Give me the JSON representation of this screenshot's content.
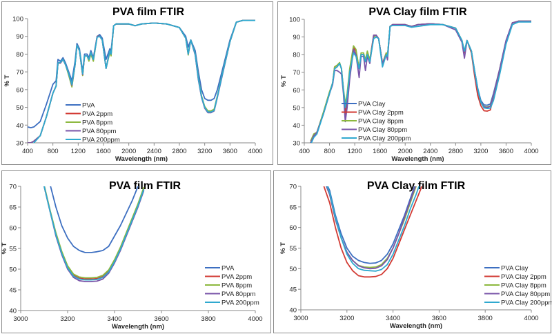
{
  "colors": {
    "blue": "#3d6fc1",
    "red": "#d23a33",
    "green": "#8cb83e",
    "purple": "#7a55a9",
    "cyan": "#2fa9cf"
  },
  "chart_data": [
    {
      "type": "line",
      "title": "PVA film FTIR",
      "xlabel": "Wavelength (nm)",
      "ylabel": "% T",
      "xlim": [
        400,
        4000
      ],
      "ylim": [
        30,
        100
      ],
      "xticks": [
        400,
        800,
        1200,
        1600,
        2000,
        2400,
        2800,
        3200,
        3600,
        4000
      ],
      "yticks": [
        30,
        40,
        50,
        60,
        70,
        80,
        90,
        100
      ],
      "grid": false,
      "legend": "bottom-left",
      "x": [
        400,
        450,
        500,
        600,
        700,
        800,
        850,
        880,
        920,
        960,
        1000,
        1050,
        1100,
        1150,
        1180,
        1220,
        1270,
        1300,
        1340,
        1370,
        1400,
        1440,
        1500,
        1540,
        1580,
        1640,
        1700,
        1720,
        1760,
        1800,
        2000,
        2100,
        2200,
        2400,
        2600,
        2800,
        2900,
        2940,
        2980,
        3050,
        3100,
        3150,
        3200,
        3250,
        3300,
        3350,
        3400,
        3500,
        3600,
        3700,
        3800,
        4000
      ],
      "series": [
        {
          "name": "PVA",
          "color": "blue",
          "values": [
            39,
            38.5,
            39,
            42,
            52,
            63,
            65,
            77,
            76,
            78,
            75,
            70,
            65,
            76,
            86,
            83,
            70,
            80,
            80,
            78,
            82,
            78,
            90,
            91,
            89,
            77,
            83,
            82,
            96,
            97,
            97,
            96,
            97,
            97.5,
            97,
            95,
            90,
            84,
            88,
            82,
            70,
            60,
            55,
            54,
            54,
            55,
            60,
            74,
            88,
            98,
            99,
            99
          ]
        },
        {
          "name": "PVA 2ppm",
          "color": "red",
          "values": [
            30,
            30,
            31,
            34,
            45,
            58,
            62,
            75,
            75,
            77,
            74,
            69,
            62,
            74,
            85,
            82,
            68,
            79,
            79,
            77,
            81,
            77,
            90,
            90,
            88,
            72,
            82,
            80,
            96,
            97,
            97,
            96,
            97,
            97.5,
            97,
            95,
            89,
            80,
            88,
            80,
            66,
            56,
            50,
            47.6,
            47.6,
            48.5,
            56,
            72,
            87,
            98,
            99,
            99
          ]
        },
        {
          "name": "PVA 8ppm",
          "color": "green",
          "values": [
            30,
            30,
            31,
            34,
            45,
            58,
            62,
            75,
            75,
            77,
            74,
            68,
            61.5,
            74,
            85,
            82,
            68,
            79,
            79,
            76,
            80,
            76,
            90,
            90,
            88,
            72,
            81,
            79,
            96,
            97,
            97,
            96,
            97,
            97.5,
            97,
            95,
            89,
            79.5,
            88,
            80,
            66.5,
            56.5,
            50.5,
            48,
            48,
            49,
            56.5,
            72,
            87,
            98,
            99,
            99
          ]
        },
        {
          "name": "PVA 80ppm",
          "color": "purple",
          "values": [
            30,
            30,
            31,
            34,
            45,
            58,
            62,
            75,
            75,
            77,
            74,
            69,
            62.5,
            74,
            85,
            82,
            68.5,
            79,
            79,
            77,
            81,
            77,
            90,
            90,
            88,
            72,
            82,
            80,
            96,
            97,
            97,
            96,
            97,
            97.5,
            97,
            95,
            89,
            80,
            88,
            79.5,
            65.5,
            55.5,
            49.5,
            47,
            47,
            48,
            55.5,
            71.5,
            87,
            98,
            99,
            99
          ]
        },
        {
          "name": "PVA 200ppm",
          "color": "cyan",
          "values": [
            29,
            29,
            30,
            34,
            45,
            58,
            62,
            75,
            75.5,
            77,
            74,
            69,
            63,
            74,
            85,
            82,
            69,
            79,
            79,
            77,
            81,
            77,
            89.5,
            90,
            88,
            72,
            82,
            80,
            96,
            97,
            97,
            96,
            97,
            97.5,
            97,
            95,
            89,
            80,
            88,
            80,
            66,
            56,
            50,
            47.4,
            47.4,
            48.3,
            56,
            72,
            87,
            98,
            99,
            99
          ]
        }
      ]
    },
    {
      "type": "line",
      "title": "PVA Clay film FTIR",
      "xlabel": "Wavelength (nm)",
      "ylabel": "% T",
      "xlim": [
        400,
        4000
      ],
      "ylim": [
        30,
        100
      ],
      "xticks": [
        400,
        800,
        1200,
        1600,
        2000,
        2400,
        2800,
        3200,
        3600,
        4000
      ],
      "yticks": [
        30,
        40,
        50,
        60,
        70,
        80,
        90,
        100
      ],
      "grid": false,
      "legend": "bottom-left",
      "x": [
        500,
        550,
        600,
        700,
        800,
        850,
        880,
        920,
        960,
        990,
        1020,
        1050,
        1080,
        1120,
        1180,
        1220,
        1270,
        1300,
        1340,
        1370,
        1400,
        1440,
        1500,
        1540,
        1580,
        1640,
        1700,
        1720,
        1760,
        1800,
        2000,
        2100,
        2200,
        2400,
        2600,
        2800,
        2900,
        2940,
        2980,
        3050,
        3100,
        3150,
        3200,
        3250,
        3300,
        3350,
        3400,
        3500,
        3600,
        3700,
        3800,
        4000
      ],
      "series": [
        {
          "name": "PVA Clay",
          "color": "blue",
          "values": [
            30,
            34,
            36,
            46,
            58,
            64,
            72,
            73,
            75,
            72,
            60,
            45,
            55,
            70,
            82,
            80,
            72,
            80,
            80,
            76,
            80,
            77,
            90,
            91,
            89,
            75,
            80,
            79,
            96,
            97,
            97,
            96,
            97,
            97.5,
            97,
            95,
            88,
            81,
            88,
            82,
            71,
            61,
            54,
            51.5,
            51.3,
            52,
            58,
            72,
            88,
            98,
            99,
            99
          ]
        },
        {
          "name": "PVA Clay 2ppm",
          "color": "red",
          "values": [
            30,
            34,
            36,
            46,
            58,
            64,
            73,
            74,
            75,
            72,
            60,
            46,
            56,
            70,
            84,
            82,
            72,
            80,
            80,
            76,
            80,
            77,
            91,
            91,
            89,
            75,
            81,
            79,
            96,
            97,
            97,
            96,
            97,
            97.5,
            97,
            95,
            88,
            81,
            88,
            81,
            68,
            57,
            51,
            48.2,
            48,
            48.6,
            56,
            71,
            87,
            98,
            99,
            99
          ]
        },
        {
          "name": "PVA Clay 8ppm",
          "color": "green",
          "values": [
            31,
            35,
            36,
            47,
            59,
            64,
            73,
            74,
            75.5,
            72,
            61,
            52,
            58,
            72,
            85,
            83,
            72,
            81,
            81,
            77,
            82,
            77,
            90,
            91,
            89,
            75,
            81,
            79,
            96,
            97,
            97,
            96,
            97,
            97.5,
            97,
            95,
            88,
            82,
            88,
            82,
            70,
            60,
            53,
            50.6,
            50.3,
            51,
            57,
            72,
            87.5,
            98,
            99,
            99
          ]
        },
        {
          "name": "PVA Clay 80ppm",
          "color": "purple",
          "values": [
            30,
            34,
            36,
            46,
            58,
            63,
            71,
            71,
            70,
            69,
            58,
            42,
            50,
            66,
            83,
            80,
            67,
            79,
            79,
            71,
            79,
            75,
            91,
            91,
            89,
            75,
            80,
            77,
            96,
            97,
            97,
            96,
            97,
            97.5,
            97,
            94,
            87,
            78,
            88,
            82,
            70,
            60,
            53,
            50.4,
            50,
            50.7,
            57,
            72,
            88,
            98,
            99,
            99
          ]
        },
        {
          "name": "PVA Clay 200ppm",
          "color": "cyan",
          "values": [
            29,
            33,
            35,
            46,
            58,
            64,
            72,
            73,
            75,
            72,
            60,
            50,
            56,
            70,
            81,
            79,
            72,
            80,
            80,
            76,
            80,
            76,
            89,
            90,
            89,
            73,
            80,
            79,
            96,
            96.5,
            96.5,
            95.5,
            96,
            97,
            97,
            95,
            88,
            82,
            88,
            82,
            71,
            61,
            53,
            49.8,
            49.5,
            49.6,
            54,
            69,
            86,
            97,
            98.5,
            98.5
          ]
        }
      ]
    },
    {
      "type": "line",
      "title": "PVA film FTIR",
      "xlabel": "Wavelength (nm)",
      "ylabel": "% T",
      "xlim": [
        3000,
        4000
      ],
      "ylim": [
        40,
        70
      ],
      "xticks": [
        3000,
        3200,
        3400,
        3600,
        3800,
        4000
      ],
      "yticks": [
        40,
        45,
        50,
        55,
        60,
        65,
        70
      ],
      "grid": false,
      "legend": "bottom-right",
      "x": [
        3100,
        3125,
        3150,
        3175,
        3200,
        3225,
        3250,
        3275,
        3300,
        3325,
        3350,
        3375,
        3400,
        3425,
        3450,
        3475,
        3500,
        3525
      ],
      "series": [
        {
          "name": "PVA",
          "color": "blue",
          "values": [
            75,
            70.5,
            65,
            60.5,
            57.5,
            55.5,
            54.5,
            54,
            54,
            54.2,
            54.5,
            55.5,
            58,
            60.5,
            63.5,
            66.5,
            70,
            73
          ]
        },
        {
          "name": "PVA 2ppm",
          "color": "red",
          "values": [
            70,
            64,
            58.5,
            54,
            50.5,
            48.5,
            47.8,
            47.6,
            47.6,
            47.7,
            48.2,
            49.5,
            52,
            55,
            58.5,
            62,
            65.5,
            69.5
          ]
        },
        {
          "name": "PVA 8ppm",
          "color": "green",
          "values": [
            70.3,
            64.3,
            58.8,
            54.3,
            50.8,
            48.8,
            48.1,
            47.9,
            47.9,
            48,
            48.5,
            49.8,
            52.3,
            55.3,
            58.8,
            62.3,
            65.8,
            69.8
          ]
        },
        {
          "name": "PVA 80ppm",
          "color": "purple",
          "values": [
            70,
            64,
            58,
            53.5,
            50,
            48,
            47.2,
            47,
            47,
            47.1,
            47.6,
            49,
            51.5,
            54.5,
            58,
            61.5,
            65,
            69
          ]
        },
        {
          "name": "PVA 200ppm",
          "color": "cyan",
          "values": [
            70,
            64,
            58.3,
            53.8,
            50.3,
            48.3,
            47.6,
            47.4,
            47.4,
            47.5,
            48,
            49.3,
            51.8,
            54.8,
            58.3,
            61.8,
            65.3,
            69.3
          ]
        }
      ]
    },
    {
      "type": "line",
      "title": "PVA Clay film FTIR",
      "xlabel": "Wavelength (nm)",
      "ylabel": "% T",
      "xlim": [
        3000,
        4000
      ],
      "ylim": [
        40,
        70
      ],
      "xticks": [
        3000,
        3200,
        3400,
        3600,
        3800,
        4000
      ],
      "yticks": [
        40,
        45,
        50,
        55,
        60,
        65,
        70
      ],
      "grid": false,
      "legend": "bottom-right",
      "x": [
        3100,
        3125,
        3150,
        3175,
        3200,
        3225,
        3250,
        3275,
        3300,
        3325,
        3350,
        3375,
        3400,
        3425,
        3450,
        3475,
        3500,
        3525
      ],
      "series": [
        {
          "name": "PVA Clay",
          "color": "blue",
          "values": [
            72,
            69,
            63,
            58.5,
            55,
            53,
            52,
            51.5,
            51.3,
            51.4,
            52,
            53.5,
            56,
            59.5,
            63,
            67,
            71,
            75
          ]
        },
        {
          "name": "PVA Clay 2ppm",
          "color": "red",
          "values": [
            70,
            66,
            60,
            55,
            51.5,
            49.5,
            48.3,
            48,
            48,
            48.1,
            48.6,
            50,
            52.5,
            56,
            59.5,
            63,
            66.5,
            70
          ]
        },
        {
          "name": "PVA Clay 8ppm",
          "color": "green",
          "values": [
            71.5,
            68,
            62,
            57.5,
            54,
            52,
            50.8,
            50.4,
            50.3,
            50.4,
            51,
            52.5,
            55,
            58.5,
            62,
            66,
            70,
            74
          ]
        },
        {
          "name": "PVA Clay 80ppm",
          "color": "purple",
          "values": [
            71.5,
            68,
            62,
            57.5,
            54,
            52,
            50.7,
            50.2,
            50,
            50.1,
            50.7,
            52.2,
            55,
            58.5,
            62.5,
            66.5,
            70.5,
            74.5
          ]
        },
        {
          "name": "PVA Clay 200ppm",
          "color": "cyan",
          "values": [
            72,
            68.5,
            62.5,
            57.5,
            53.5,
            51.3,
            50,
            49.6,
            49.5,
            49.4,
            49.8,
            51,
            53.5,
            57,
            60.5,
            64.5,
            68,
            72
          ]
        }
      ]
    }
  ]
}
